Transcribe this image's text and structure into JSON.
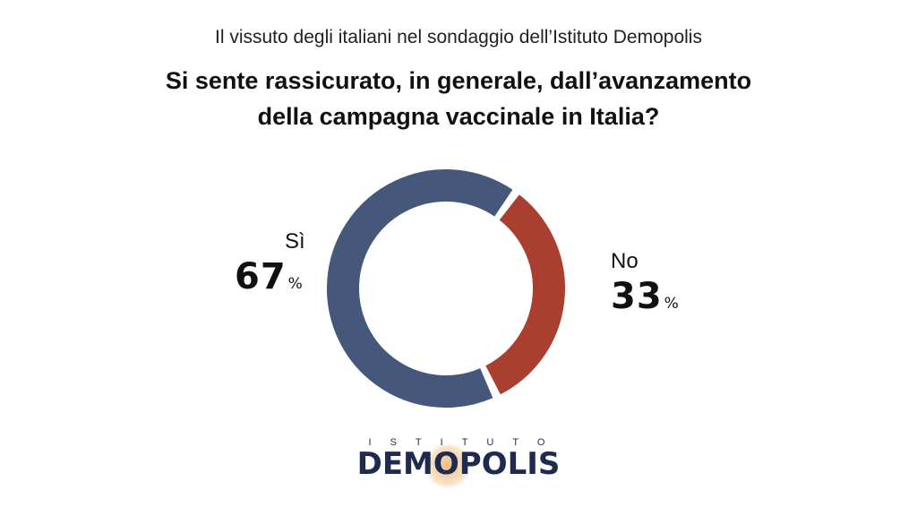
{
  "header": {
    "subtitle": "Il vissuto degli italiani nel sondaggio dell’Istituto Demopolis",
    "question_line1": "Si sente rassicurato, in generale, dall’avanzamento",
    "question_line2": "della campagna vaccinale in Italia?"
  },
  "chart_data": {
    "type": "pie",
    "title": "Si sente rassicurato, in generale, dall’avanzamento della campagna vaccinale in Italia?",
    "categories": [
      "Sì",
      "No"
    ],
    "values": [
      67,
      33
    ],
    "labels": [
      {
        "name": "Sì",
        "value": "67",
        "unit": "%"
      },
      {
        "name": "No",
        "value": "33",
        "unit": "%"
      }
    ],
    "colors": [
      "#45587b",
      "#a9402f"
    ]
  },
  "logo": {
    "top": "ISTITUTO",
    "main": "DEMOPOLIS"
  }
}
